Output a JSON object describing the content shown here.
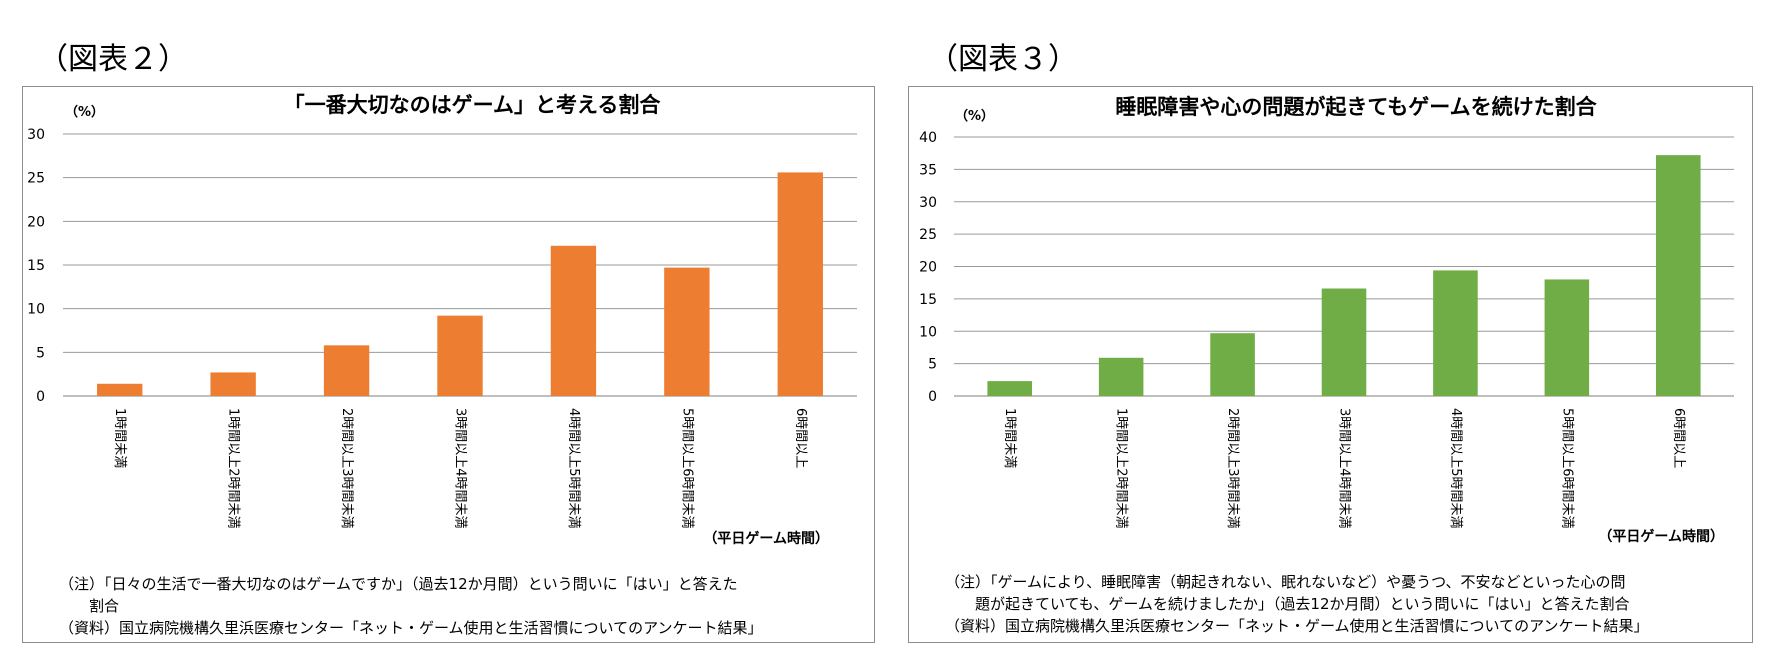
{
  "figures": [
    {
      "label": "（図表２）"
    },
    {
      "label": "（図表３）"
    }
  ],
  "chart_data": [
    {
      "type": "bar",
      "title": "「一番大切なのはゲーム」と考える割合",
      "ylabel": "（%）",
      "xlabel": "（平日ゲーム時間）",
      "categories": [
        "1時間未満",
        "1時間以上2時間未満",
        "2時間以上3時間未満",
        "3時間以上4時間未満",
        "4時間以上5時間未満",
        "5時間以上6時間未満",
        "6時間以上"
      ],
      "values": [
        1.4,
        2.7,
        5.8,
        9.2,
        17.2,
        14.7,
        25.6
      ],
      "ylim": [
        0,
        30
      ],
      "yticks": [
        0,
        5,
        10,
        15,
        20,
        25,
        30
      ],
      "color": "#ED7D31",
      "grid": true,
      "legend": "none",
      "notes": [
        "（注）「日々の生活で一番大切なのはゲームですか」（過去12か月間）という問いに「はい」と答えた",
        "割合",
        "（資料）国立病院機構久里浜医療センター「ネット・ゲーム使用と生活習慣についてのアンケート結果」"
      ]
    },
    {
      "type": "bar",
      "title": "睡眠障害や心の問題が起きてもゲームを続けた割合",
      "ylabel": "（%）",
      "xlabel": "（平日ゲーム時間）",
      "categories": [
        "1時間未満",
        "1時間以上2時間未満",
        "2時間以上3時間未満",
        "3時間以上4時間未満",
        "4時間以上5時間未満",
        "5時間以上6時間未満",
        "6時間以上"
      ],
      "values": [
        2.3,
        5.9,
        9.7,
        16.6,
        19.4,
        18.0,
        37.2
      ],
      "ylim": [
        0,
        40
      ],
      "yticks": [
        0,
        5,
        10,
        15,
        20,
        25,
        30,
        35,
        40
      ],
      "color": "#70AD47",
      "grid": true,
      "legend": "none",
      "notes": [
        "（注）「ゲームにより、睡眠障害（朝起きれない、眠れないなど）や憂うつ、不安などといった心の問",
        "題が起きていても、ゲームを続けましたか」（過去12か月間）という問いに「はい」と答えた割合",
        "（資料）国立病院機構久里浜医療センター「ネット・ゲーム使用と生活習慣についてのアンケート結果」"
      ]
    }
  ]
}
